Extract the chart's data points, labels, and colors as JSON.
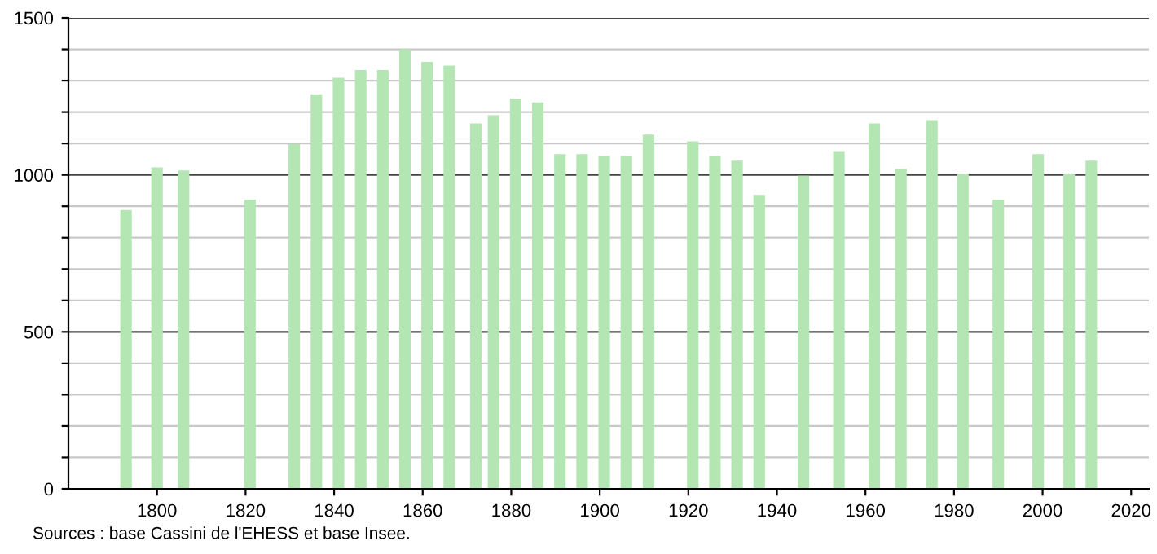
{
  "chart_data": {
    "type": "bar",
    "x": [
      1793,
      1800,
      1806,
      1821,
      1831,
      1836,
      1841,
      1846,
      1851,
      1856,
      1861,
      1866,
      1872,
      1876,
      1881,
      1886,
      1891,
      1896,
      1901,
      1906,
      1911,
      1921,
      1926,
      1931,
      1936,
      1946,
      1954,
      1962,
      1968,
      1975,
      1982,
      1990,
      1999,
      2006,
      2011
    ],
    "values": [
      888,
      1024,
      1014,
      921,
      1098,
      1257,
      1309,
      1334,
      1334,
      1400,
      1360,
      1348,
      1164,
      1190,
      1243,
      1231,
      1066,
      1066,
      1060,
      1060,
      1128,
      1107,
      1060,
      1045,
      936,
      997,
      1076,
      1164,
      1019,
      1174,
      1003,
      921,
      1066,
      1003,
      1045
    ],
    "color": "#b3e6b3",
    "xlim": [
      1780,
      2024
    ],
    "xticks": [
      1800,
      1820,
      1840,
      1860,
      1880,
      1900,
      1920,
      1940,
      1960,
      1980,
      2000,
      2020
    ],
    "ylim": [
      0,
      1500
    ],
    "yticks": [
      0,
      {
        "value": 100,
        "label": null
      },
      {
        "value": 200,
        "label": null
      },
      {
        "value": 300,
        "label": null
      },
      {
        "value": 400,
        "label": null
      },
      500,
      {
        "value": 600,
        "label": null
      },
      {
        "value": 700,
        "label": null
      },
      {
        "value": 800,
        "label": null
      },
      {
        "value": 900,
        "label": null
      },
      1000,
      {
        "value": 1100,
        "label": null
      },
      {
        "value": 1200,
        "label": null
      },
      {
        "value": 1300,
        "label": null
      },
      {
        "value": 1400,
        "label": null
      },
      1500
    ],
    "grid": "y",
    "annotations": [
      "Sources : base Cassini de l'EHESS et base Insee."
    ]
  }
}
